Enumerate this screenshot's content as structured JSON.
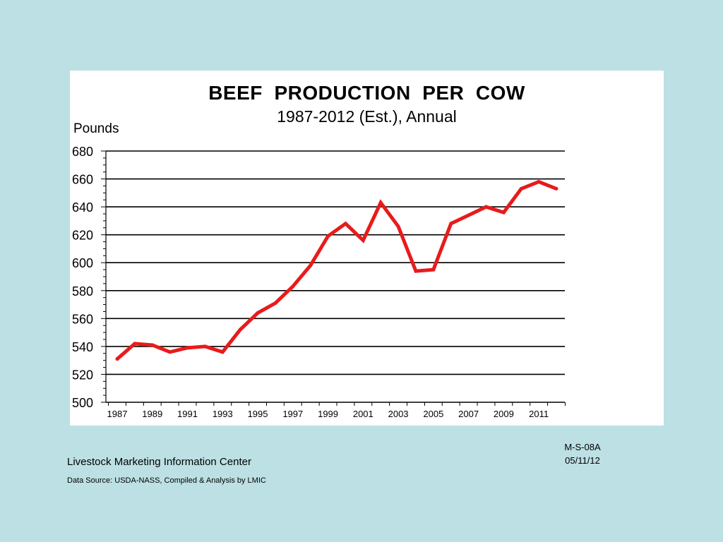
{
  "chart_data": {
    "type": "line",
    "title": "BEEF  PRODUCTION  PER  COW",
    "subtitle": "1987-2012 (Est.), Annual",
    "ylabel": "Pounds",
    "xlabel": "",
    "ylim": [
      500,
      680
    ],
    "yticks": [
      "500",
      "520",
      "540",
      "560",
      "580",
      "600",
      "620",
      "640",
      "660",
      "680"
    ],
    "xticks": [
      "1987",
      "1989",
      "1991",
      "1993",
      "1995",
      "1997",
      "1999",
      "2001",
      "2003",
      "2005",
      "2007",
      "2009",
      "2011"
    ],
    "grid": true,
    "line_color": "#e81b1b",
    "x": [
      1987,
      1988,
      1989,
      1990,
      1991,
      1992,
      1993,
      1994,
      1995,
      1996,
      1997,
      1998,
      1999,
      2000,
      2001,
      2002,
      2003,
      2004,
      2005,
      2006,
      2007,
      2008,
      2009,
      2010,
      2011,
      2012
    ],
    "values": [
      531,
      542,
      541,
      536,
      539,
      540,
      536,
      552,
      564,
      571,
      583,
      598,
      619,
      628,
      616,
      643,
      626,
      594,
      595,
      628,
      634,
      640,
      636,
      653,
      658,
      653
    ]
  },
  "chart_code": "M-S-08A",
  "chart_date": "05/11/12",
  "footer": {
    "organization": "Livestock Marketing Information Center",
    "source": "Data Source:  USDA-NASS, Compiled & Analysis by LMIC"
  }
}
